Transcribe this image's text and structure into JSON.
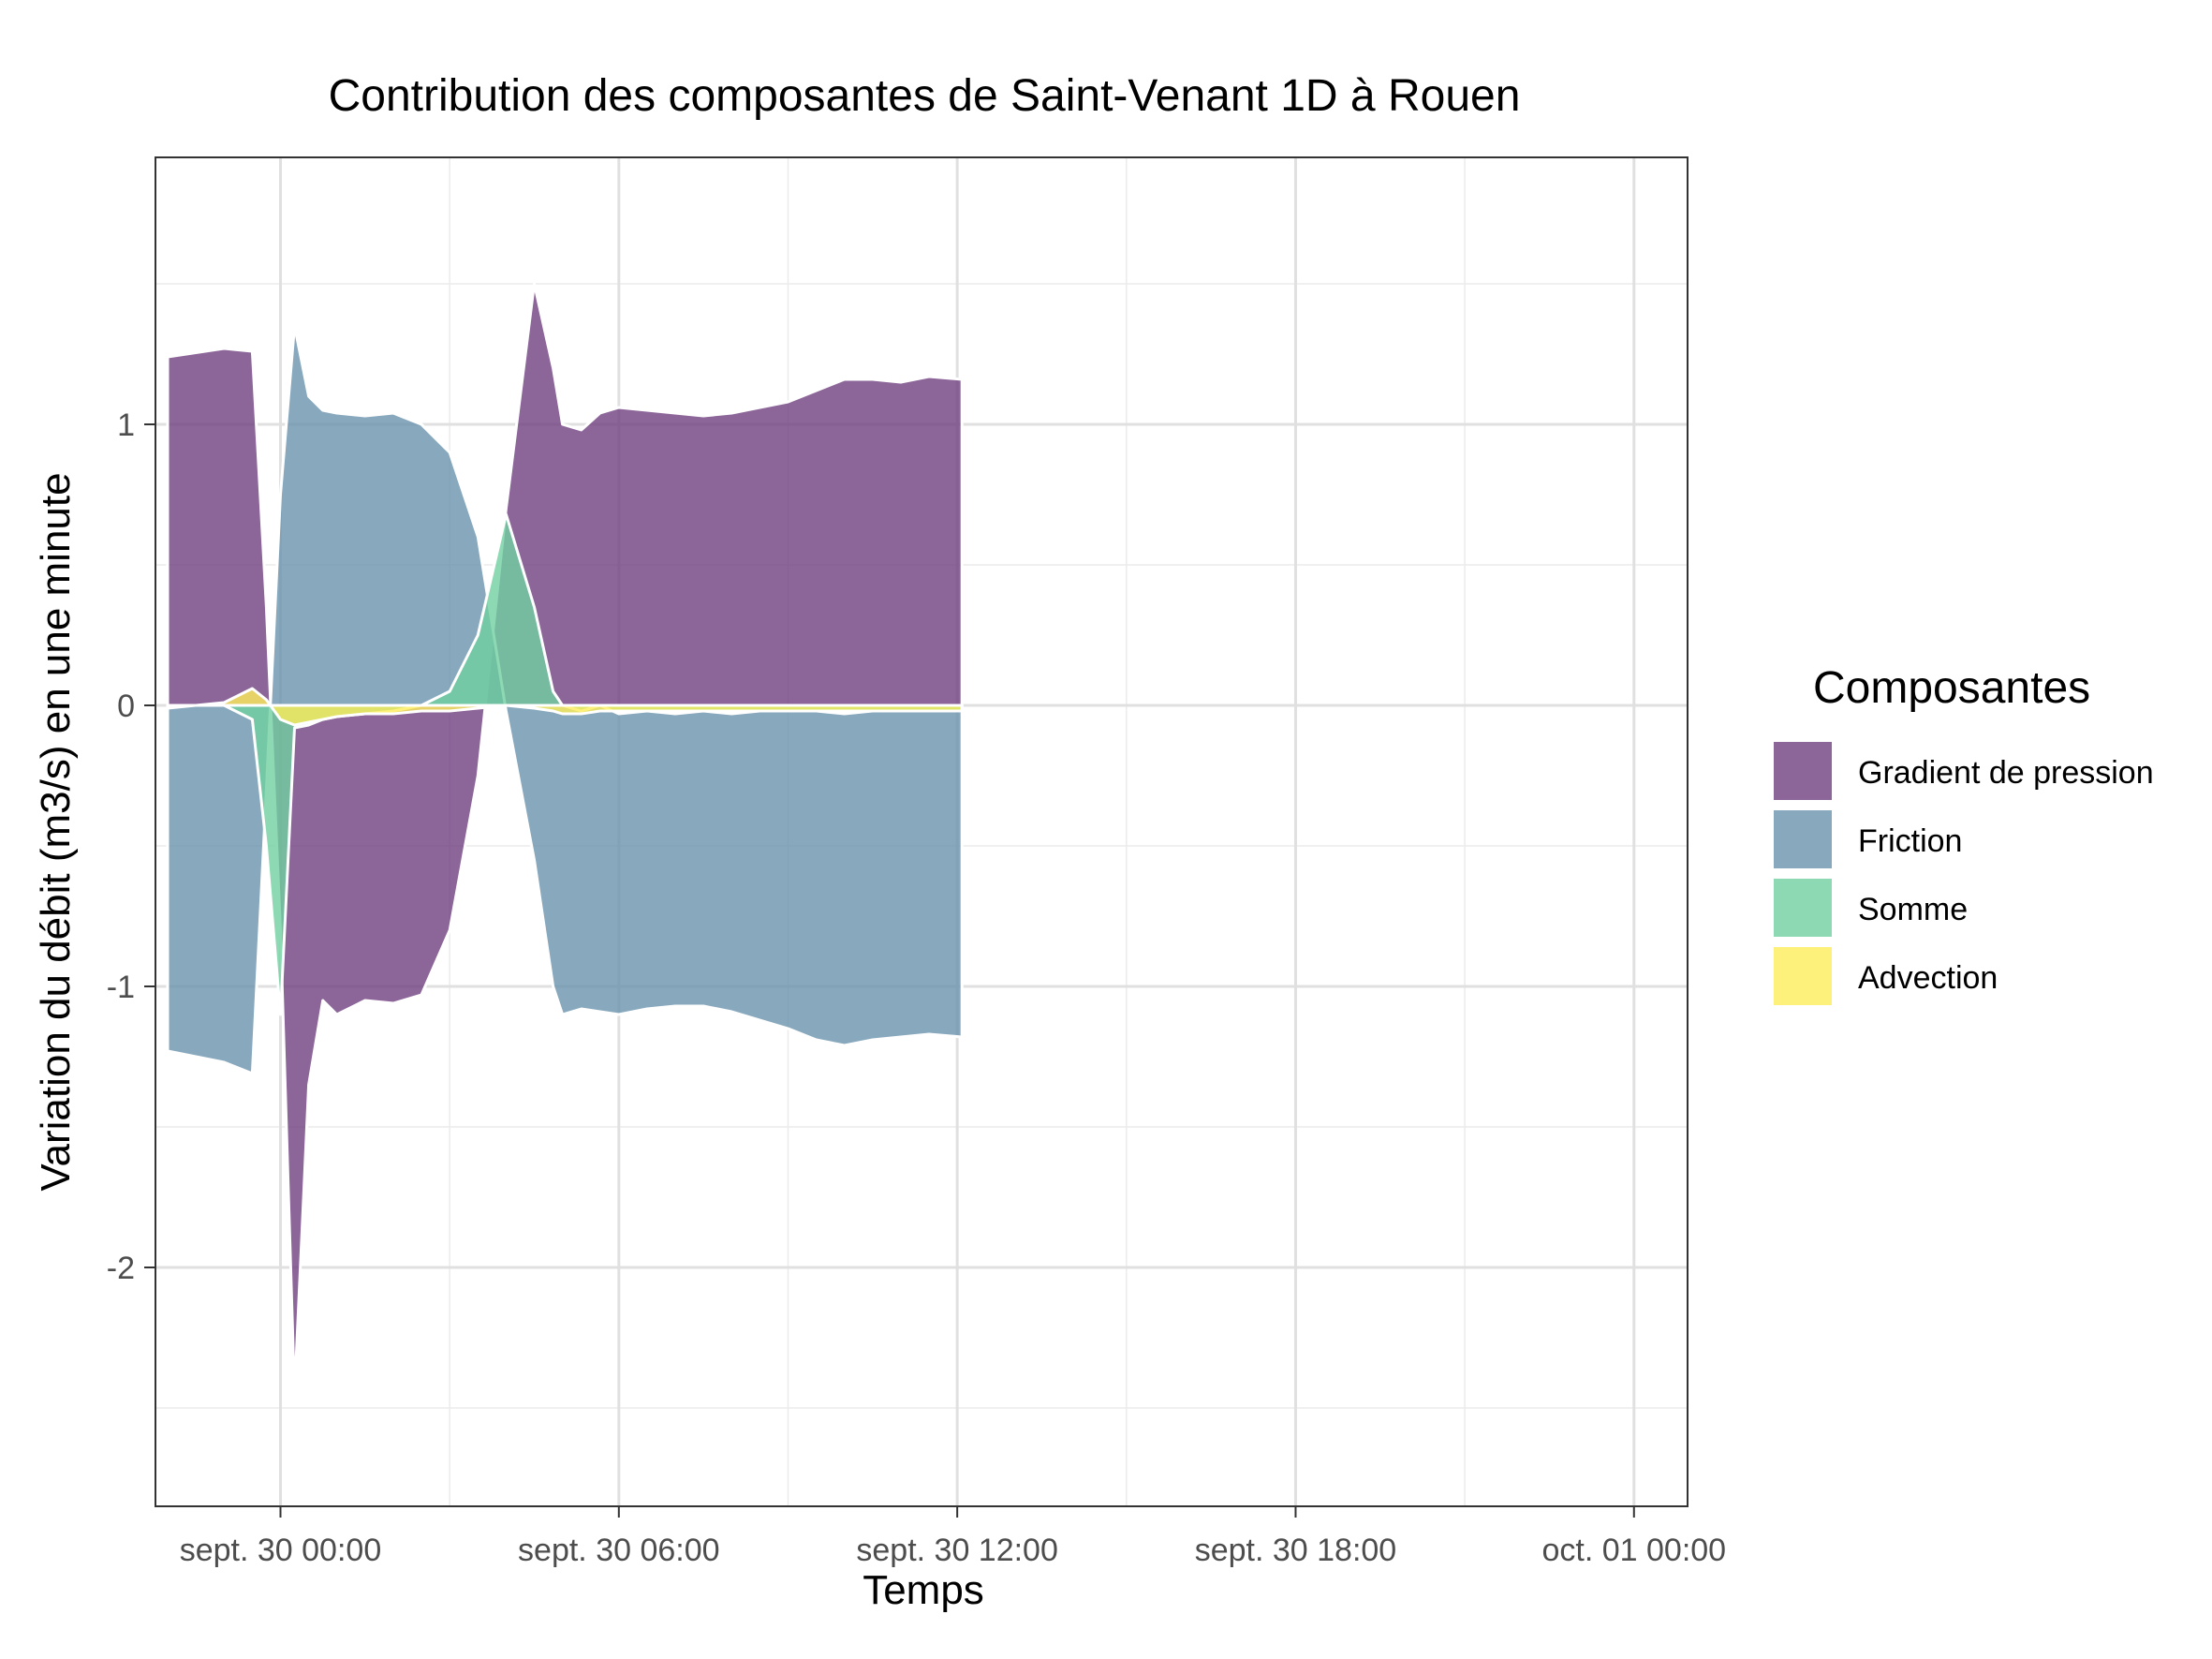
{
  "chart_data": {
    "type": "area",
    "title": "Contribution des composantes de Saint-Venant 1D à Rouen",
    "xlabel": "Temps",
    "ylabel": "Variation du débit (m3/s) en une minute",
    "xlim": [
      "2024-09-29 21:47",
      "2024-10-01 00:57"
    ],
    "ylim": [
      -2.85,
      1.95
    ],
    "x_ticks": [
      {
        "value": "2024-09-30 00:00",
        "label": "sept. 30 00:00"
      },
      {
        "value": "2024-09-30 06:00",
        "label": "sept. 30 06:00"
      },
      {
        "value": "2024-09-30 12:00",
        "label": "sept. 30 12:00"
      },
      {
        "value": "2024-09-30 18:00",
        "label": "sept. 30 18:00"
      },
      {
        "value": "2024-10-01 00:00",
        "label": "oct. 01 00:00"
      }
    ],
    "y_ticks": [
      {
        "value": 1,
        "label": "1"
      },
      {
        "value": 0,
        "label": "0"
      },
      {
        "value": -1,
        "label": "-1"
      },
      {
        "value": -2,
        "label": "-2"
      }
    ],
    "grid": true,
    "legend": {
      "title": "Composantes",
      "position": "right",
      "entries": [
        {
          "name": "Gradient de pression",
          "color": "#6f3f80"
        },
        {
          "name": "Friction",
          "color": "#6a92ad"
        },
        {
          "name": "Somme",
          "color": "#70d0a0"
        },
        {
          "name": "Advection",
          "color": "#fdee5a"
        }
      ]
    },
    "x": [
      "2024-09-29 22:00",
      "2024-09-29 23:00",
      "2024-09-29 23:30",
      "2024-09-29 23:45",
      "2024-09-30 00:00",
      "2024-09-30 00:15",
      "2024-09-30 00:30",
      "2024-09-30 00:45",
      "2024-09-30 01:00",
      "2024-09-30 01:30",
      "2024-09-30 02:00",
      "2024-09-30 02:30",
      "2024-09-30 03:00",
      "2024-09-30 03:30",
      "2024-09-30 04:00",
      "2024-09-30 04:30",
      "2024-09-30 04:50",
      "2024-09-30 05:00",
      "2024-09-30 05:20",
      "2024-09-30 05:40",
      "2024-09-30 06:00",
      "2024-09-30 06:30",
      "2024-09-30 07:00",
      "2024-09-30 07:30",
      "2024-09-30 08:00",
      "2024-09-30 08:30",
      "2024-09-30 09:00",
      "2024-09-30 09:30",
      "2024-09-30 10:00",
      "2024-09-30 10:30",
      "2024-09-30 11:00",
      "2024-09-30 11:30",
      "2024-09-30 12:05"
    ],
    "series": [
      {
        "name": "Gradient de pression",
        "color": "#6f3f80",
        "values": [
          1.24,
          1.27,
          1.26,
          0.35,
          -0.8,
          -2.45,
          -1.35,
          -1.05,
          -1.1,
          -1.05,
          -1.06,
          -1.03,
          -0.8,
          -0.25,
          0.7,
          1.5,
          1.2,
          1.0,
          0.98,
          1.04,
          1.06,
          1.05,
          1.04,
          1.03,
          1.04,
          1.06,
          1.08,
          1.12,
          1.16,
          1.16,
          1.15,
          1.17,
          1.16
        ]
      },
      {
        "name": "Friction",
        "color": "#6a92ad",
        "values": [
          -1.23,
          -1.27,
          -1.31,
          -0.3,
          0.75,
          1.35,
          1.1,
          1.05,
          1.04,
          1.03,
          1.04,
          1.0,
          0.9,
          0.6,
          -0.02,
          -0.55,
          -1.0,
          -1.1,
          -1.08,
          -1.09,
          -1.1,
          -1.08,
          -1.07,
          -1.07,
          -1.09,
          -1.12,
          -1.15,
          -1.19,
          -1.21,
          -1.19,
          -1.18,
          -1.17,
          -1.18
        ]
      },
      {
        "name": "Somme",
        "color": "#70d0a0",
        "values": [
          0.0,
          0.0,
          -0.05,
          -0.5,
          -1.1,
          -0.08,
          -0.07,
          -0.05,
          -0.04,
          -0.03,
          -0.02,
          0.0,
          0.05,
          0.25,
          0.68,
          0.35,
          0.05,
          0.0,
          -0.02,
          0.0,
          -0.03,
          -0.02,
          -0.03,
          -0.02,
          -0.03,
          -0.02,
          -0.02,
          -0.02,
          -0.03,
          -0.02,
          -0.02,
          -0.02,
          -0.02
        ]
      },
      {
        "name": "Advection",
        "color": "#fdee5a",
        "values": [
          -0.01,
          0.01,
          0.06,
          0.02,
          -0.05,
          -0.07,
          -0.06,
          -0.05,
          -0.04,
          -0.03,
          -0.03,
          -0.02,
          -0.02,
          -0.01,
          0.0,
          -0.01,
          -0.02,
          -0.03,
          -0.03,
          -0.02,
          -0.02,
          -0.02,
          -0.02,
          -0.02,
          -0.02,
          -0.02,
          -0.02,
          -0.02,
          -0.02,
          -0.02,
          -0.02,
          -0.02,
          -0.02
        ]
      }
    ]
  }
}
